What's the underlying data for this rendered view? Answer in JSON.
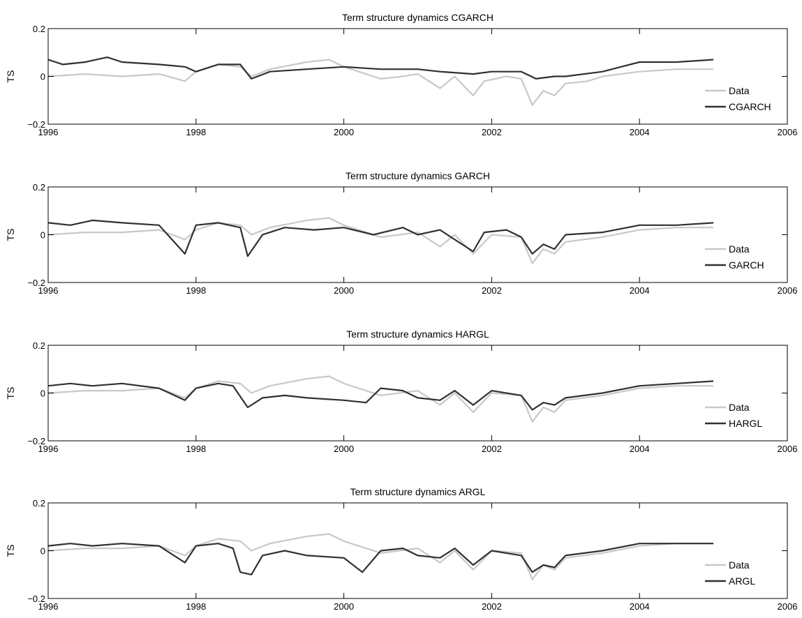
{
  "chart_data": [
    {
      "type": "line",
      "title": "Term structure dynamics CGARCH",
      "ylabel": "TS",
      "xlim": [
        1996,
        2006
      ],
      "ylim": [
        -0.2,
        0.2
      ],
      "xticks": [
        "1996",
        "1998",
        "2000",
        "2002",
        "2004",
        "2006"
      ],
      "yticks": [
        "0.2",
        "0",
        "−0.2"
      ],
      "legend_position": "lower-right",
      "series": [
        {
          "name": "Data",
          "color": "#c8c8c8",
          "points": [
            [
              1996.0,
              0.0
            ],
            [
              1996.5,
              0.01
            ],
            [
              1997.0,
              0.0
            ],
            [
              1997.5,
              0.01
            ],
            [
              1997.85,
              -0.02
            ],
            [
              1998.0,
              0.02
            ],
            [
              1998.3,
              0.05
            ],
            [
              1998.6,
              0.04
            ],
            [
              1998.75,
              0.0
            ],
            [
              1999.0,
              0.03
            ],
            [
              1999.5,
              0.06
            ],
            [
              1999.8,
              0.07
            ],
            [
              2000.0,
              0.04
            ],
            [
              2000.3,
              0.01
            ],
            [
              2000.5,
              -0.01
            ],
            [
              2000.8,
              0.0
            ],
            [
              2001.0,
              0.01
            ],
            [
              2001.3,
              -0.05
            ],
            [
              2001.5,
              0.0
            ],
            [
              2001.75,
              -0.08
            ],
            [
              2001.9,
              -0.02
            ],
            [
              2002.2,
              0.0
            ],
            [
              2002.4,
              -0.01
            ],
            [
              2002.55,
              -0.12
            ],
            [
              2002.7,
              -0.06
            ],
            [
              2002.85,
              -0.08
            ],
            [
              2003.0,
              -0.03
            ],
            [
              2003.3,
              -0.02
            ],
            [
              2003.5,
              0.0
            ],
            [
              2004.0,
              0.02
            ],
            [
              2004.5,
              0.03
            ],
            [
              2005.0,
              0.03
            ]
          ]
        },
        {
          "name": "CGARCH",
          "color": "#303030",
          "points": [
            [
              1996.0,
              0.07
            ],
            [
              1996.2,
              0.05
            ],
            [
              1996.5,
              0.06
            ],
            [
              1996.8,
              0.08
            ],
            [
              1997.0,
              0.06
            ],
            [
              1997.5,
              0.05
            ],
            [
              1997.85,
              0.04
            ],
            [
              1998.0,
              0.02
            ],
            [
              1998.3,
              0.05
            ],
            [
              1998.6,
              0.05
            ],
            [
              1998.75,
              -0.01
            ],
            [
              1999.0,
              0.02
            ],
            [
              1999.5,
              0.03
            ],
            [
              2000.0,
              0.04
            ],
            [
              2000.5,
              0.03
            ],
            [
              2001.0,
              0.03
            ],
            [
              2001.3,
              0.02
            ],
            [
              2001.75,
              0.01
            ],
            [
              2002.0,
              0.02
            ],
            [
              2002.4,
              0.02
            ],
            [
              2002.6,
              -0.01
            ],
            [
              2002.85,
              0.0
            ],
            [
              2003.0,
              0.0
            ],
            [
              2003.5,
              0.02
            ],
            [
              2004.0,
              0.06
            ],
            [
              2004.5,
              0.06
            ],
            [
              2005.0,
              0.07
            ]
          ]
        }
      ]
    },
    {
      "type": "line",
      "title": "Term structure dynamics GARCH",
      "ylabel": "TS",
      "xlim": [
        1996,
        2006
      ],
      "ylim": [
        -0.2,
        0.2
      ],
      "xticks": [
        "1996",
        "1998",
        "2000",
        "2002",
        "2004",
        "2006"
      ],
      "yticks": [
        "0.2",
        "0",
        "−0.2"
      ],
      "legend_position": "lower-right",
      "series": [
        {
          "name": "Data",
          "color": "#c8c8c8",
          "points": [
            [
              1996.0,
              0.0
            ],
            [
              1996.5,
              0.01
            ],
            [
              1997.0,
              0.01
            ],
            [
              1997.5,
              0.02
            ],
            [
              1997.85,
              -0.02
            ],
            [
              1998.0,
              0.02
            ],
            [
              1998.3,
              0.05
            ],
            [
              1998.6,
              0.04
            ],
            [
              1998.75,
              0.0
            ],
            [
              1999.0,
              0.03
            ],
            [
              1999.5,
              0.06
            ],
            [
              1999.8,
              0.07
            ],
            [
              2000.0,
              0.04
            ],
            [
              2000.3,
              0.01
            ],
            [
              2000.5,
              -0.01
            ],
            [
              2001.0,
              0.01
            ],
            [
              2001.3,
              -0.05
            ],
            [
              2001.5,
              0.0
            ],
            [
              2001.75,
              -0.08
            ],
            [
              2002.0,
              0.0
            ],
            [
              2002.4,
              -0.01
            ],
            [
              2002.55,
              -0.12
            ],
            [
              2002.7,
              -0.06
            ],
            [
              2002.85,
              -0.08
            ],
            [
              2003.0,
              -0.03
            ],
            [
              2003.5,
              -0.01
            ],
            [
              2004.0,
              0.02
            ],
            [
              2004.5,
              0.03
            ],
            [
              2005.0,
              0.03
            ]
          ]
        },
        {
          "name": "GARCH",
          "color": "#303030",
          "points": [
            [
              1996.0,
              0.05
            ],
            [
              1996.3,
              0.04
            ],
            [
              1996.6,
              0.06
            ],
            [
              1997.0,
              0.05
            ],
            [
              1997.5,
              0.04
            ],
            [
              1997.85,
              -0.08
            ],
            [
              1998.0,
              0.04
            ],
            [
              1998.3,
              0.05
            ],
            [
              1998.6,
              0.03
            ],
            [
              1998.7,
              -0.09
            ],
            [
              1998.9,
              0.0
            ],
            [
              1999.2,
              0.03
            ],
            [
              1999.6,
              0.02
            ],
            [
              2000.0,
              0.03
            ],
            [
              2000.4,
              0.0
            ],
            [
              2000.8,
              0.03
            ],
            [
              2001.0,
              0.0
            ],
            [
              2001.3,
              0.02
            ],
            [
              2001.5,
              -0.02
            ],
            [
              2001.75,
              -0.07
            ],
            [
              2001.9,
              0.01
            ],
            [
              2002.2,
              0.02
            ],
            [
              2002.4,
              -0.01
            ],
            [
              2002.55,
              -0.08
            ],
            [
              2002.7,
              -0.04
            ],
            [
              2002.85,
              -0.06
            ],
            [
              2003.0,
              0.0
            ],
            [
              2003.5,
              0.01
            ],
            [
              2004.0,
              0.04
            ],
            [
              2004.5,
              0.04
            ],
            [
              2005.0,
              0.05
            ]
          ]
        }
      ]
    },
    {
      "type": "line",
      "title": "Term structure dynamics HARGL",
      "ylabel": "TS",
      "xlim": [
        1996,
        2006
      ],
      "ylim": [
        -0.2,
        0.2
      ],
      "xticks": [
        "1996",
        "1998",
        "2000",
        "2002",
        "2004",
        "2006"
      ],
      "yticks": [
        "0.2",
        "0",
        "−0.2"
      ],
      "legend_position": "lower-right",
      "series": [
        {
          "name": "Data",
          "color": "#c8c8c8",
          "points": [
            [
              1996.0,
              0.0
            ],
            [
              1996.5,
              0.01
            ],
            [
              1997.0,
              0.01
            ],
            [
              1997.5,
              0.02
            ],
            [
              1997.85,
              -0.02
            ],
            [
              1998.0,
              0.02
            ],
            [
              1998.3,
              0.05
            ],
            [
              1998.6,
              0.04
            ],
            [
              1998.75,
              0.0
            ],
            [
              1999.0,
              0.03
            ],
            [
              1999.5,
              0.06
            ],
            [
              1999.8,
              0.07
            ],
            [
              2000.0,
              0.04
            ],
            [
              2000.3,
              0.01
            ],
            [
              2000.5,
              -0.01
            ],
            [
              2001.0,
              0.01
            ],
            [
              2001.3,
              -0.05
            ],
            [
              2001.5,
              0.0
            ],
            [
              2001.75,
              -0.08
            ],
            [
              2002.0,
              0.0
            ],
            [
              2002.4,
              -0.01
            ],
            [
              2002.55,
              -0.12
            ],
            [
              2002.7,
              -0.06
            ],
            [
              2002.85,
              -0.08
            ],
            [
              2003.0,
              -0.03
            ],
            [
              2003.5,
              -0.01
            ],
            [
              2004.0,
              0.02
            ],
            [
              2004.5,
              0.03
            ],
            [
              2005.0,
              0.03
            ]
          ]
        },
        {
          "name": "HARGL",
          "color": "#303030",
          "points": [
            [
              1996.0,
              0.03
            ],
            [
              1996.3,
              0.04
            ],
            [
              1996.6,
              0.03
            ],
            [
              1997.0,
              0.04
            ],
            [
              1997.5,
              0.02
            ],
            [
              1997.85,
              -0.03
            ],
            [
              1998.0,
              0.02
            ],
            [
              1998.3,
              0.04
            ],
            [
              1998.5,
              0.03
            ],
            [
              1998.7,
              -0.06
            ],
            [
              1998.9,
              -0.02
            ],
            [
              1999.2,
              -0.01
            ],
            [
              1999.5,
              -0.02
            ],
            [
              2000.0,
              -0.03
            ],
            [
              2000.3,
              -0.04
            ],
            [
              2000.5,
              0.02
            ],
            [
              2000.8,
              0.01
            ],
            [
              2001.0,
              -0.02
            ],
            [
              2001.3,
              -0.03
            ],
            [
              2001.5,
              0.01
            ],
            [
              2001.75,
              -0.05
            ],
            [
              2002.0,
              0.01
            ],
            [
              2002.4,
              -0.01
            ],
            [
              2002.55,
              -0.07
            ],
            [
              2002.7,
              -0.04
            ],
            [
              2002.85,
              -0.05
            ],
            [
              2003.0,
              -0.02
            ],
            [
              2003.5,
              0.0
            ],
            [
              2004.0,
              0.03
            ],
            [
              2004.5,
              0.04
            ],
            [
              2005.0,
              0.05
            ]
          ]
        }
      ]
    },
    {
      "type": "line",
      "title": "Term structure dynamics ARGL",
      "ylabel": "TS",
      "xlim": [
        1996,
        2006
      ],
      "ylim": [
        -0.2,
        0.2
      ],
      "xticks": [
        "1996",
        "1998",
        "2000",
        "2002",
        "2004",
        "2006"
      ],
      "yticks": [
        "0.2",
        "0",
        "−0.2"
      ],
      "legend_position": "lower-right",
      "series": [
        {
          "name": "Data",
          "color": "#c8c8c8",
          "points": [
            [
              1996.0,
              0.0
            ],
            [
              1996.5,
              0.01
            ],
            [
              1997.0,
              0.01
            ],
            [
              1997.5,
              0.02
            ],
            [
              1997.85,
              -0.02
            ],
            [
              1998.0,
              0.02
            ],
            [
              1998.3,
              0.05
            ],
            [
              1998.6,
              0.04
            ],
            [
              1998.75,
              0.0
            ],
            [
              1999.0,
              0.03
            ],
            [
              1999.5,
              0.06
            ],
            [
              1999.8,
              0.07
            ],
            [
              2000.0,
              0.04
            ],
            [
              2000.3,
              0.01
            ],
            [
              2000.5,
              -0.01
            ],
            [
              2001.0,
              0.01
            ],
            [
              2001.3,
              -0.05
            ],
            [
              2001.5,
              0.0
            ],
            [
              2001.75,
              -0.08
            ],
            [
              2002.0,
              0.0
            ],
            [
              2002.4,
              -0.01
            ],
            [
              2002.55,
              -0.12
            ],
            [
              2002.7,
              -0.06
            ],
            [
              2002.85,
              -0.08
            ],
            [
              2003.0,
              -0.03
            ],
            [
              2003.5,
              -0.01
            ],
            [
              2004.0,
              0.02
            ],
            [
              2004.5,
              0.03
            ],
            [
              2005.0,
              0.03
            ]
          ]
        },
        {
          "name": "ARGL",
          "color": "#303030",
          "points": [
            [
              1996.0,
              0.02
            ],
            [
              1996.3,
              0.03
            ],
            [
              1996.6,
              0.02
            ],
            [
              1997.0,
              0.03
            ],
            [
              1997.5,
              0.02
            ],
            [
              1997.85,
              -0.05
            ],
            [
              1998.0,
              0.02
            ],
            [
              1998.3,
              0.03
            ],
            [
              1998.5,
              0.01
            ],
            [
              1998.6,
              -0.09
            ],
            [
              1998.75,
              -0.1
            ],
            [
              1998.9,
              -0.02
            ],
            [
              1999.2,
              0.0
            ],
            [
              1999.5,
              -0.02
            ],
            [
              2000.0,
              -0.03
            ],
            [
              2000.25,
              -0.09
            ],
            [
              2000.5,
              0.0
            ],
            [
              2000.8,
              0.01
            ],
            [
              2001.0,
              -0.02
            ],
            [
              2001.3,
              -0.03
            ],
            [
              2001.5,
              0.01
            ],
            [
              2001.75,
              -0.06
            ],
            [
              2002.0,
              0.0
            ],
            [
              2002.4,
              -0.02
            ],
            [
              2002.55,
              -0.09
            ],
            [
              2002.7,
              -0.06
            ],
            [
              2002.85,
              -0.07
            ],
            [
              2003.0,
              -0.02
            ],
            [
              2003.5,
              0.0
            ],
            [
              2004.0,
              0.03
            ],
            [
              2004.5,
              0.03
            ],
            [
              2005.0,
              0.03
            ]
          ]
        }
      ]
    }
  ]
}
